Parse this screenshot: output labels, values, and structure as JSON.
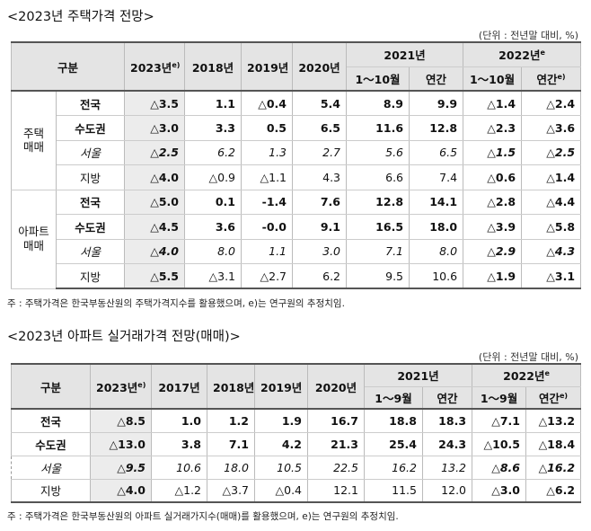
{
  "table1": {
    "title": "<2023년 주택가격 전망>",
    "unit": "(단위 : 전년말 대비, %)",
    "header": {
      "category": {
        "text": "구분"
      },
      "forecast": {
        "text": "2023년",
        "sup": "e)"
      },
      "years": [
        {
          "text": "2018년"
        },
        {
          "text": "2019년"
        },
        {
          "text": "2020년"
        }
      ],
      "y2021": {
        "text": "2021년"
      },
      "y2022": {
        "text": "2022년",
        "sup": "e"
      },
      "sub": [
        {
          "text": "1～10월"
        },
        {
          "text": "연간"
        },
        {
          "text": "1～10월"
        },
        {
          "text": "연간",
          "sup": "e)"
        }
      ]
    },
    "groups": [
      {
        "label": [
          "주택",
          "매매"
        ],
        "rows": [
          {
            "name": "전국",
            "cells": [
              "△3.5",
              "1.1",
              "△0.4",
              "5.4",
              "8.9",
              "9.9",
              "△1.4",
              "△2.4"
            ]
          },
          {
            "name": "수도권",
            "cells": [
              "△3.0",
              "3.3",
              "0.5",
              "6.5",
              "11.6",
              "12.8",
              "△2.3",
              "△3.6"
            ]
          },
          {
            "name": "서울",
            "cells": [
              "△2.5",
              "6.2",
              "1.3",
              "2.7",
              "5.6",
              "6.5",
              "△1.5",
              "△2.5"
            ]
          },
          {
            "name": "지방",
            "cells": [
              "△4.0",
              "△0.9",
              "△1.1",
              "4.3",
              "6.6",
              "7.4",
              "△0.6",
              "△1.4"
            ]
          }
        ]
      },
      {
        "label": [
          "아파트",
          "매매"
        ],
        "rows": [
          {
            "name": "전국",
            "cells": [
              "△5.0",
              "0.1",
              "-1.4",
              "7.6",
              "12.8",
              "14.1",
              "△2.8",
              "△4.4"
            ]
          },
          {
            "name": "수도권",
            "cells": [
              "△4.5",
              "3.6",
              "-0.0",
              "9.1",
              "16.5",
              "18.0",
              "△3.9",
              "△5.8"
            ]
          },
          {
            "name": "서울",
            "cells": [
              "△4.0",
              "8.0",
              "1.1",
              "3.0",
              "7.1",
              "8.0",
              "△2.9",
              "△4.3"
            ]
          },
          {
            "name": "지방",
            "cells": [
              "△5.5",
              "△3.1",
              "△2.7",
              "6.2",
              "9.5",
              "10.6",
              "△1.9",
              "△3.1"
            ]
          }
        ]
      }
    ],
    "note": "주 : 주택가격은 한국부동산원의 주택가격지수를 활용했으며, e)는 연구원의 추정치임."
  },
  "table2": {
    "title": "<2023년 아파트 실거래가격 전망(매매)>",
    "unit": "(단위 : 전년말 대비, %)",
    "header": {
      "category": {
        "text": "구분"
      },
      "forecast": {
        "text": "2023년",
        "sup": "e)"
      },
      "years": [
        {
          "text": "2017년"
        },
        {
          "text": "2018년"
        },
        {
          "text": "2019년"
        },
        {
          "text": "2020년"
        }
      ],
      "y2021": {
        "text": "2021년"
      },
      "y2022": {
        "text": "2022년",
        "sup": "e"
      },
      "sub": [
        {
          "text": "1～9월"
        },
        {
          "text": "연간"
        },
        {
          "text": "1～9월"
        },
        {
          "text": "연간",
          "sup": "e)"
        }
      ]
    },
    "rows": [
      {
        "name": "전국",
        "cells": [
          "△8.5",
          "1.0",
          "1.2",
          "1.9",
          "16.7",
          "18.8",
          "18.3",
          "△7.1",
          "△13.2"
        ]
      },
      {
        "name": "수도권",
        "cells": [
          "△13.0",
          "3.8",
          "7.1",
          "4.2",
          "21.3",
          "25.4",
          "24.3",
          "△10.5",
          "△18.4"
        ]
      },
      {
        "name": "서울",
        "cells": [
          "△9.5",
          "10.6",
          "18.0",
          "10.5",
          "22.5",
          "16.2",
          "13.2",
          "△8.6",
          "△16.2"
        ]
      },
      {
        "name": "지방",
        "cells": [
          "△4.0",
          "△1.2",
          "△3.7",
          "△0.4",
          "12.1",
          "11.5",
          "12.0",
          "△3.0",
          "△6.2"
        ]
      }
    ],
    "note": "주 : 주택가격은 한국부동산원의 아파트 실거래가지수(매매)를 활용했으며, e)는 연구원의 추정치임."
  }
}
